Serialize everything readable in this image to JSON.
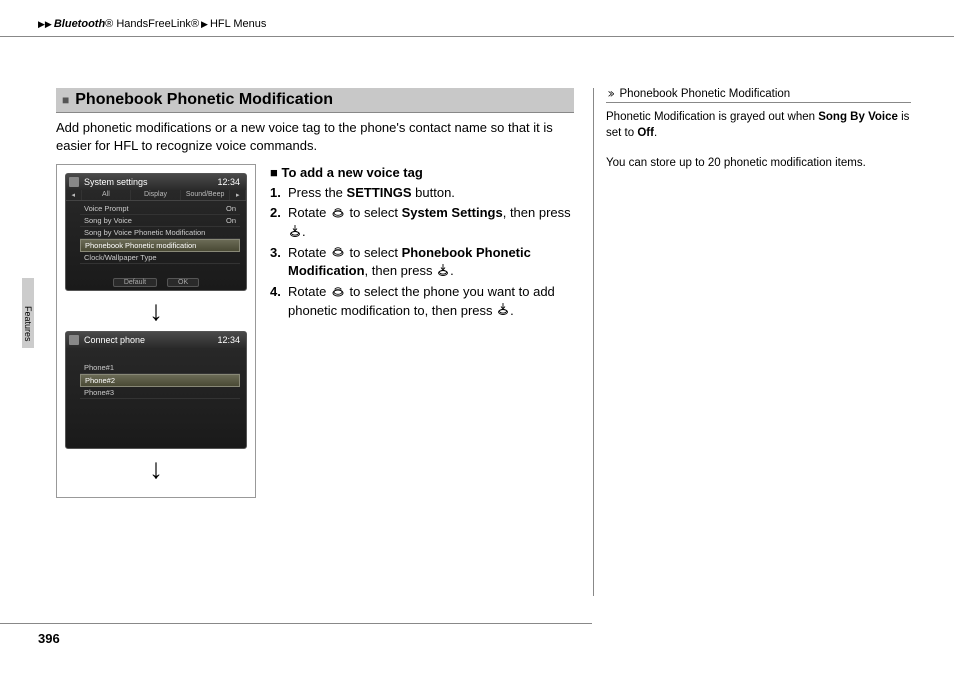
{
  "breadcrumb": {
    "l1": "Bluetooth",
    "l1sup": "®",
    "l2": " HandsFreeLink",
    "l2sup": "®",
    "l3": "HFL Menus"
  },
  "section": {
    "title": "Phonebook Phonetic Modification",
    "intro": "Add phonetic modifications or a new voice tag to the phone's contact name so that it is easier for HFL to recognize voice commands."
  },
  "screen1": {
    "title": "System settings",
    "time": "12:34",
    "tabs": [
      "All",
      "Display",
      "Sound/Beep"
    ],
    "items": [
      {
        "label": "Voice Prompt",
        "value": "On"
      },
      {
        "label": "Song by Voice",
        "value": "On"
      },
      {
        "label": "Song by Voice Phonetic Modification",
        "value": ""
      },
      {
        "label": "Phonebook Phonetic modification",
        "value": ""
      },
      {
        "label": "Clock/Wallpaper Type",
        "value": ""
      }
    ],
    "footer": [
      "Default",
      "OK"
    ]
  },
  "screen2": {
    "title": "Connect phone",
    "time": "12:34",
    "items": [
      {
        "label": "Phone#1"
      },
      {
        "label": "Phone#2"
      },
      {
        "label": "Phone#3"
      }
    ]
  },
  "steps": {
    "heading": "To add a new voice tag",
    "list": [
      {
        "n": "1.",
        "pre": "Press the ",
        "bold": "SETTINGS",
        "post": " button."
      },
      {
        "n": "2.",
        "pre": "Rotate ",
        "icon": "dial",
        "mid": " to select ",
        "bold": "System Settings",
        "post": ", then press ",
        "icon2": "press",
        "end": "."
      },
      {
        "n": "3.",
        "pre": "Rotate ",
        "icon": "dial",
        "mid": " to select ",
        "bold": "Phonebook Phonetic Modification",
        "post": ", then press ",
        "icon2": "press",
        "end": "."
      },
      {
        "n": "4.",
        "pre": "Rotate ",
        "icon": "dial",
        "mid": " to select the phone you want to add phonetic modification to, then press ",
        "icon2": "press",
        "end": "."
      }
    ]
  },
  "sidebar": {
    "title": "Phonebook Phonetic Modification",
    "p1a": "Phonetic Modification is grayed out when ",
    "p1b": "Song By Voice",
    "p1c": " is set to ",
    "p1d": "Off",
    "p1e": ".",
    "p2": "You can store up to 20 phonetic modification items."
  },
  "tab": "Features",
  "pageNum": "396"
}
